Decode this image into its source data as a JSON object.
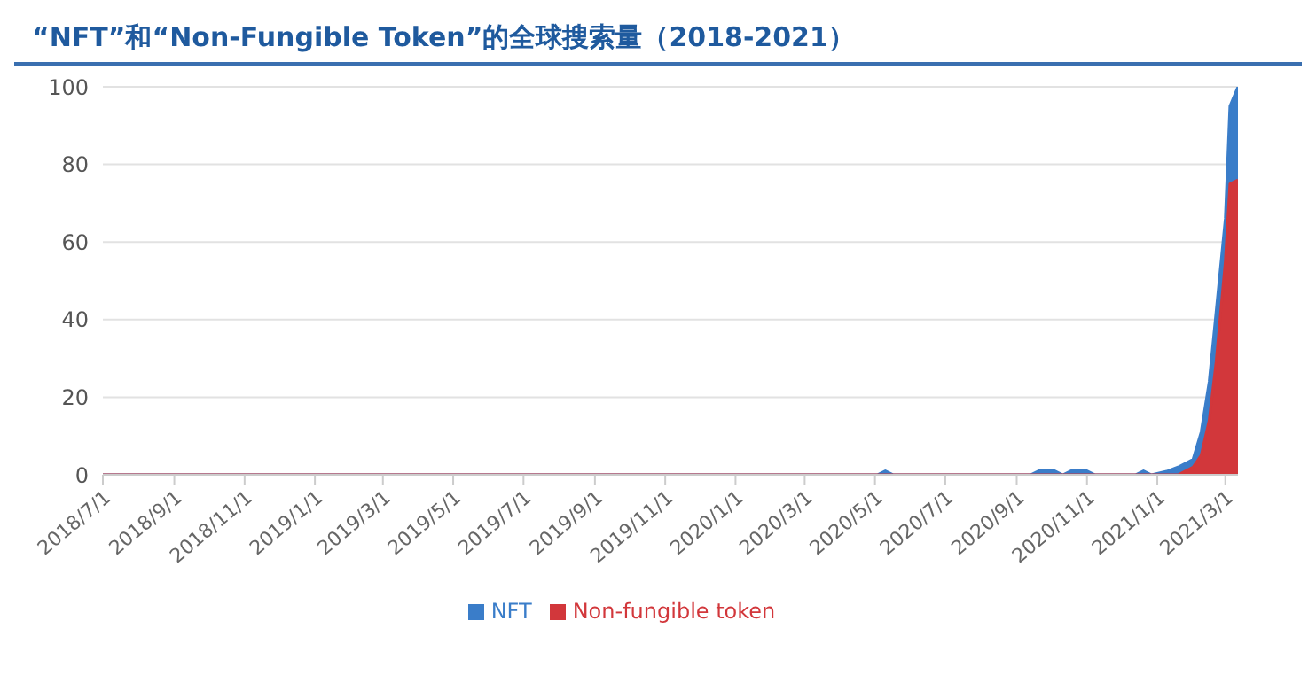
{
  "chart_data": {
    "type": "area",
    "title": "“NFT”和“Non-Fungible Token”的全球搜索量（2018-2021）",
    "x": [
      "2018-07-01",
      "2020-05-03",
      "2020-05-10",
      "2020-05-17",
      "2020-09-13",
      "2020-09-20",
      "2020-10-04",
      "2020-10-11",
      "2020-10-18",
      "2020-11-01",
      "2020-11-08",
      "2020-12-13",
      "2020-12-20",
      "2020-12-27",
      "2021-01-10",
      "2021-01-19",
      "2021-02-01",
      "2021-02-08",
      "2021-02-15",
      "2021-02-21",
      "2021-03-01",
      "2021-03-05",
      "2021-03-12"
    ],
    "series": [
      {
        "name": "NFT",
        "color": "#3a7dc9",
        "values": [
          0,
          0,
          1,
          0,
          0,
          1,
          1,
          0,
          1,
          1,
          0,
          0,
          1,
          0,
          1,
          2,
          4,
          11,
          24,
          42,
          66,
          95,
          100
        ]
      },
      {
        "name": "Non-fungible token",
        "color": "#d2373b",
        "values": [
          0,
          0,
          0,
          0,
          0,
          0,
          0,
          0,
          0,
          0,
          0,
          0,
          0,
          0,
          0,
          0,
          2,
          5,
          14,
          29,
          55,
          75,
          76
        ]
      }
    ],
    "xlim": [
      "2018-07-01",
      "2021-03-12"
    ],
    "xticks": [
      {
        "value": "2018-07-01",
        "label": "2018/7/1"
      },
      {
        "value": "2018-09-01",
        "label": "2018/9/1"
      },
      {
        "value": "2018-11-01",
        "label": "2018/11/1"
      },
      {
        "value": "2019-01-01",
        "label": "2019/1/1"
      },
      {
        "value": "2019-03-01",
        "label": "2019/3/1"
      },
      {
        "value": "2019-05-01",
        "label": "2019/5/1"
      },
      {
        "value": "2019-07-01",
        "label": "2019/7/1"
      },
      {
        "value": "2019-09-01",
        "label": "2019/9/1"
      },
      {
        "value": "2019-11-01",
        "label": "2019/11/1"
      },
      {
        "value": "2020-01-01",
        "label": "2020/1/1"
      },
      {
        "value": "2020-03-01",
        "label": "2020/3/1"
      },
      {
        "value": "2020-05-01",
        "label": "2020/5/1"
      },
      {
        "value": "2020-07-01",
        "label": "2020/7/1"
      },
      {
        "value": "2020-09-01",
        "label": "2020/9/1"
      },
      {
        "value": "2020-11-01",
        "label": "2020/11/1"
      },
      {
        "value": "2021-01-01",
        "label": "2021/1/1"
      },
      {
        "value": "2021-03-01",
        "label": "2021/3/1"
      }
    ],
    "ylim": [
      0,
      100
    ],
    "yticks": [
      0,
      20,
      40,
      60,
      80,
      100
    ],
    "grid": "y",
    "legend": "bottom"
  }
}
